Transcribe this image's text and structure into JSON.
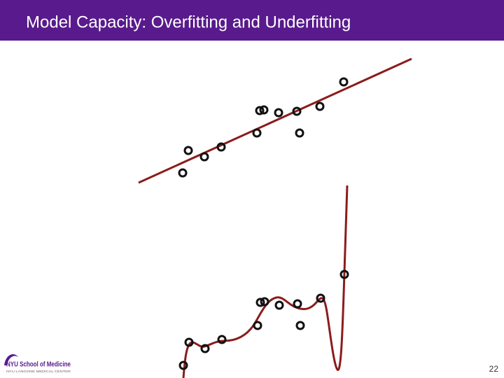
{
  "header": {
    "title": "Model Capacity: Overfitting and Underfitting"
  },
  "footer": {
    "logo_name": "NYU School of Medicine",
    "logo_subtitle": "NYU LANGONE MEDICAL CENTER",
    "page_number": "22"
  }
}
